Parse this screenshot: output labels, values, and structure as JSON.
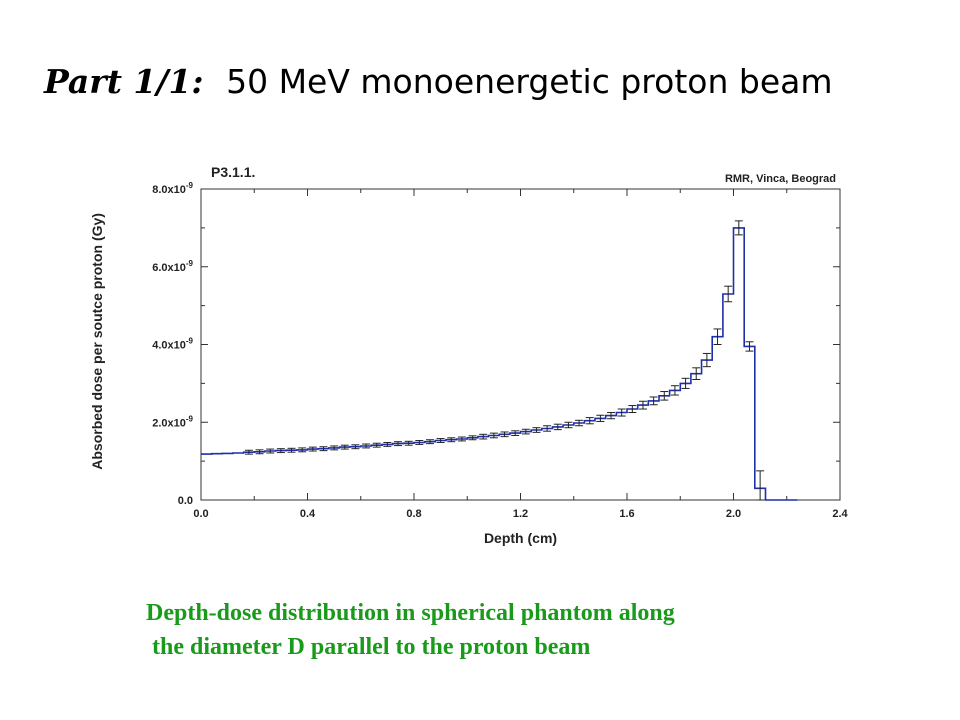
{
  "slide": {
    "title_prefix": "Part 1/1:",
    "title_main": "50 MeV monoenergetic proton beam",
    "caption_line1": "Depth-dose distribution in spherical phantom along",
    "caption_line2": " the diameter D parallel to the proton beam"
  },
  "chart_data": {
    "type": "line",
    "title": "P3.1.1.",
    "annotation": "RMR, Vinca, Beograd",
    "xlabel": "Depth (cm)",
    "ylabel": "Absorbed dose per soutce proton (Gy)",
    "xlim": [
      0,
      2.4
    ],
    "ylim": [
      0,
      8e-09
    ],
    "x_ticks": [
      "0.0",
      "0.4",
      "0.8",
      "1.2",
      "1.6",
      "2.0",
      "2.4"
    ],
    "y_ticks": [
      "0.0",
      "2.0x10-9",
      "4.0x10-9",
      "6.0x10-9",
      "8.0x10-9"
    ],
    "grid": false,
    "line_color": "#1f2fa8",
    "bin_width": 0.04,
    "series": [
      {
        "x": [
          0.0,
          0.04,
          0.08,
          0.12,
          0.16,
          0.2,
          0.24,
          0.28,
          0.32,
          0.36,
          0.4,
          0.44,
          0.48,
          0.52,
          0.56,
          0.6,
          0.64,
          0.68,
          0.72,
          0.76,
          0.8,
          0.84,
          0.88,
          0.92,
          0.96,
          1.0,
          1.04,
          1.08,
          1.12,
          1.16,
          1.2,
          1.24,
          1.28,
          1.32,
          1.36,
          1.4,
          1.44,
          1.48,
          1.52,
          1.56,
          1.6,
          1.64,
          1.68,
          1.72,
          1.76,
          1.8,
          1.84,
          1.88,
          1.92,
          1.96,
          2.0,
          2.04,
          2.08,
          2.12,
          2.16,
          2.2
        ],
        "values": [
          1.18e-09,
          1.19e-09,
          1.2e-09,
          1.21e-09,
          1.23e-09,
          1.24e-09,
          1.26e-09,
          1.27e-09,
          1.28e-09,
          1.29e-09,
          1.31e-09,
          1.32e-09,
          1.34e-09,
          1.36e-09,
          1.37e-09,
          1.39e-09,
          1.41e-09,
          1.43e-09,
          1.45e-09,
          1.46e-09,
          1.48e-09,
          1.5e-09,
          1.53e-09,
          1.55e-09,
          1.57e-09,
          1.6e-09,
          1.63e-09,
          1.66e-09,
          1.69e-09,
          1.72e-09,
          1.76e-09,
          1.8e-09,
          1.84e-09,
          1.88e-09,
          1.93e-09,
          1.98e-09,
          2.04e-09,
          2.1e-09,
          2.17e-09,
          2.25e-09,
          2.34e-09,
          2.44e-09,
          2.55e-09,
          2.68e-09,
          2.82e-09,
          3e-09,
          3.25e-09,
          3.6e-09,
          4.2e-09,
          5.3e-09,
          7e-09,
          3.95e-09,
          3e-10,
          0.0,
          0.0,
          0.0
        ],
        "errors": [
          0,
          0,
          0,
          0,
          5e-11,
          5e-11,
          5e-11,
          5e-11,
          5e-11,
          5e-11,
          5e-11,
          5e-11,
          5e-11,
          5e-11,
          5e-11,
          5e-11,
          5e-11,
          5e-11,
          5e-11,
          5e-11,
          5e-11,
          5e-11,
          5e-11,
          5e-11,
          5e-11,
          5e-11,
          6e-11,
          6e-11,
          6e-11,
          6e-11,
          6e-11,
          6e-11,
          7e-11,
          7e-11,
          7e-11,
          7e-11,
          8e-11,
          8e-11,
          8e-11,
          9e-11,
          9e-11,
          1e-10,
          1e-10,
          1.1e-10,
          1.2e-10,
          1.3e-10,
          1.5e-10,
          1.7e-10,
          2e-10,
          2e-10,
          1.8e-10,
          1.2e-10,
          4.5e-10,
          0,
          0,
          0
        ]
      }
    ]
  }
}
